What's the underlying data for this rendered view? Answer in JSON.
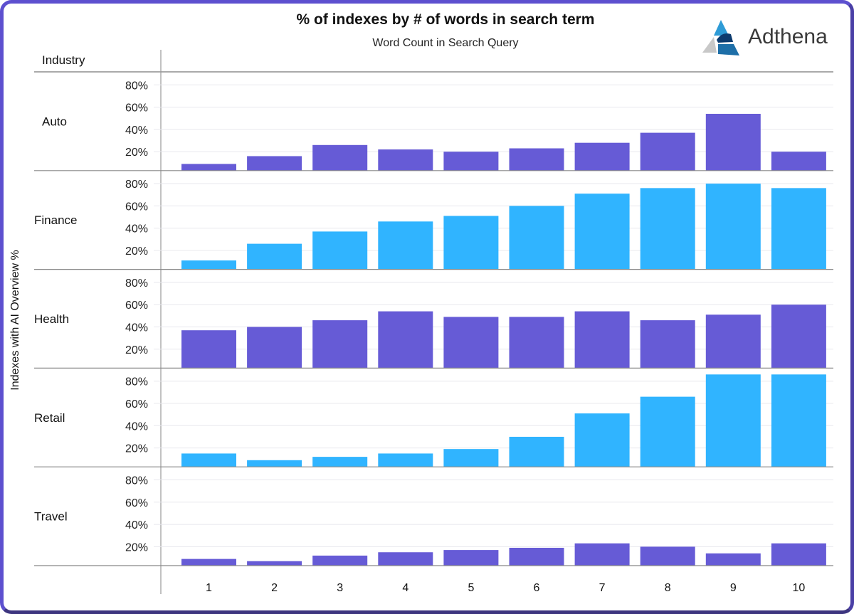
{
  "logo": {
    "text": "Adthena"
  },
  "chart_data": {
    "type": "bar",
    "title": "% of indexes by # of words in search term",
    "xlabel": "Word Count in Search Query",
    "ylabel": "Indexes with AI Overview %",
    "row_header": "Industry",
    "categories": [
      "1",
      "2",
      "3",
      "4",
      "5",
      "6",
      "7",
      "8",
      "9",
      "10"
    ],
    "yticks": [
      "20%",
      "40%",
      "60%",
      "80%"
    ],
    "ylim": [
      3,
      92
    ],
    "grid": true,
    "colors": {
      "purple": "#665bd6",
      "blue": "#30b4ff"
    },
    "series": [
      {
        "name": "Auto",
        "color": "#665bd6",
        "values": [
          9,
          16,
          26,
          22,
          20,
          23,
          28,
          37,
          54,
          20
        ]
      },
      {
        "name": "Finance",
        "color": "#30b4ff",
        "values": [
          11,
          26,
          37,
          46,
          51,
          60,
          71,
          76,
          80,
          76
        ]
      },
      {
        "name": "Health",
        "color": "#665bd6",
        "values": [
          37,
          40,
          46,
          54,
          49,
          49,
          54,
          46,
          51,
          60
        ]
      },
      {
        "name": "Retail",
        "color": "#30b4ff",
        "values": [
          15,
          9,
          12,
          15,
          19,
          30,
          51,
          66,
          86,
          86
        ]
      },
      {
        "name": "Travel",
        "color": "#665bd6",
        "values": [
          9,
          7,
          12,
          15,
          17,
          19,
          23,
          20,
          14,
          23
        ]
      }
    ]
  }
}
